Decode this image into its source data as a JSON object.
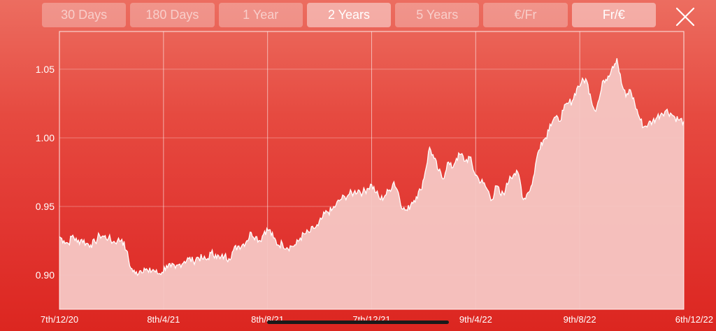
{
  "range_options": [
    {
      "label": "30 Days",
      "active": false
    },
    {
      "label": "180 Days",
      "active": false
    },
    {
      "label": "1 Year",
      "active": false
    },
    {
      "label": "2 Years",
      "active": true
    },
    {
      "label": "5 Years",
      "active": false
    },
    {
      "label": "€/Fr",
      "active": false
    },
    {
      "label": "Fr/€",
      "active": true
    }
  ],
  "close_icon": "close-icon",
  "colors": {
    "background_top": "#ec6d60",
    "background_bottom": "#dc2620",
    "area_fill": "#f6c7c4",
    "line": "#ffffff"
  },
  "chart_data": {
    "type": "area",
    "title": "",
    "xlabel": "",
    "ylabel": "",
    "grid": true,
    "legend": "none",
    "ylim": [
      0.875,
      1.0775
    ],
    "y_ticks": [
      0.9,
      0.95,
      1.0,
      1.05
    ],
    "y_tick_labels": [
      "0.90",
      "0.95",
      "1.00",
      "1.05"
    ],
    "x_tick_labels": [
      "7th/12/20",
      "8th/4/21",
      "8th/8/21",
      "7th/12/21",
      "9th/4/22",
      "9th/8/22",
      "6th/12/22"
    ],
    "series": [
      {
        "points": [
          [
            0,
            0.928
          ],
          [
            1,
            0.925
          ],
          [
            2,
            0.923
          ],
          [
            3,
            0.929
          ],
          [
            4,
            0.924
          ],
          [
            5,
            0.926
          ],
          [
            6,
            0.923
          ],
          [
            7,
            0.922
          ],
          [
            8,
            0.924
          ],
          [
            9,
            0.929
          ],
          [
            10,
            0.928
          ],
          [
            11,
            0.927
          ],
          [
            12,
            0.924
          ],
          [
            13,
            0.925
          ],
          [
            14,
            0.926
          ],
          [
            15,
            0.918
          ],
          [
            16,
            0.905
          ],
          [
            17,
            0.901
          ],
          [
            18,
            0.903
          ],
          [
            19,
            0.905
          ],
          [
            20,
            0.902
          ],
          [
            21,
            0.904
          ],
          [
            22,
            0.901
          ],
          [
            23,
            0.902
          ],
          [
            24,
            0.907
          ],
          [
            25,
            0.906
          ],
          [
            26,
            0.905
          ],
          [
            27,
            0.908
          ],
          [
            28,
            0.91
          ],
          [
            29,
            0.912
          ],
          [
            30,
            0.91
          ],
          [
            31,
            0.913
          ],
          [
            32,
            0.912
          ],
          [
            33,
            0.911
          ],
          [
            34,
            0.916
          ],
          [
            35,
            0.915
          ],
          [
            36,
            0.912
          ],
          [
            37,
            0.914
          ],
          [
            38,
            0.912
          ],
          [
            39,
            0.918
          ],
          [
            40,
            0.921
          ],
          [
            41,
            0.922
          ],
          [
            42,
            0.925
          ],
          [
            43,
            0.931
          ],
          [
            44,
            0.928
          ],
          [
            45,
            0.925
          ],
          [
            46,
            0.932
          ],
          [
            47,
            0.933
          ],
          [
            48,
            0.927
          ],
          [
            49,
            0.922
          ],
          [
            50,
            0.923
          ],
          [
            51,
            0.92
          ],
          [
            52,
            0.921
          ],
          [
            53,
            0.922
          ],
          [
            54,
            0.927
          ],
          [
            55,
            0.93
          ],
          [
            56,
            0.931
          ],
          [
            57,
            0.934
          ],
          [
            58,
            0.936
          ],
          [
            59,
            0.942
          ],
          [
            60,
            0.946
          ],
          [
            61,
            0.947
          ],
          [
            62,
            0.951
          ],
          [
            63,
            0.955
          ],
          [
            64,
            0.957
          ],
          [
            65,
            0.959
          ],
          [
            66,
            0.96
          ],
          [
            67,
            0.962
          ],
          [
            68,
            0.96
          ],
          [
            69,
            0.963
          ],
          [
            70,
            0.966
          ],
          [
            71,
            0.96
          ],
          [
            72,
            0.955
          ],
          [
            73,
            0.958
          ],
          [
            74,
            0.962
          ],
          [
            75,
            0.968
          ],
          [
            76,
            0.96
          ],
          [
            77,
            0.948
          ],
          [
            78,
            0.947
          ],
          [
            79,
            0.953
          ],
          [
            80,
            0.957
          ],
          [
            81,
            0.962
          ],
          [
            82,
            0.975
          ],
          [
            83,
            0.993
          ],
          [
            84,
            0.985
          ],
          [
            85,
            0.976
          ],
          [
            86,
            0.97
          ],
          [
            87,
            0.982
          ],
          [
            88,
            0.978
          ],
          [
            89,
            0.985
          ],
          [
            90,
            0.988
          ],
          [
            91,
            0.983
          ],
          [
            92,
            0.986
          ],
          [
            93,
            0.975
          ],
          [
            94,
            0.97
          ],
          [
            95,
            0.967
          ],
          [
            96,
            0.962
          ],
          [
            97,
            0.955
          ],
          [
            98,
            0.965
          ],
          [
            99,
            0.958
          ],
          [
            100,
            0.962
          ],
          [
            101,
            0.972
          ],
          [
            102,
            0.974
          ],
          [
            103,
            0.973
          ],
          [
            104,
            0.955
          ],
          [
            105,
            0.96
          ],
          [
            106,
            0.966
          ],
          [
            107,
            0.985
          ],
          [
            108,
            0.997
          ],
          [
            109,
            1.0
          ],
          [
            110,
            1.01
          ],
          [
            111,
            1.015
          ],
          [
            112,
            1.012
          ],
          [
            113,
            1.02
          ],
          [
            114,
            1.025
          ],
          [
            115,
            1.027
          ],
          [
            116,
            1.036
          ],
          [
            117,
            1.04
          ],
          [
            118,
            1.043
          ],
          [
            119,
            1.032
          ],
          [
            120,
            1.02
          ],
          [
            121,
            1.028
          ],
          [
            122,
            1.042
          ],
          [
            123,
            1.045
          ],
          [
            124,
            1.052
          ],
          [
            125,
            1.058
          ],
          [
            126,
            1.04
          ],
          [
            127,
            1.03
          ],
          [
            128,
            1.035
          ],
          [
            129,
            1.025
          ],
          [
            130,
            1.015
          ],
          [
            131,
            1.008
          ],
          [
            132,
            1.01
          ],
          [
            133,
            1.012
          ],
          [
            134,
            1.015
          ],
          [
            135,
            1.018
          ],
          [
            136,
            1.02
          ],
          [
            137,
            1.018
          ],
          [
            138,
            1.015
          ],
          [
            139,
            1.013
          ],
          [
            140,
            1.012
          ]
        ]
      }
    ]
  }
}
